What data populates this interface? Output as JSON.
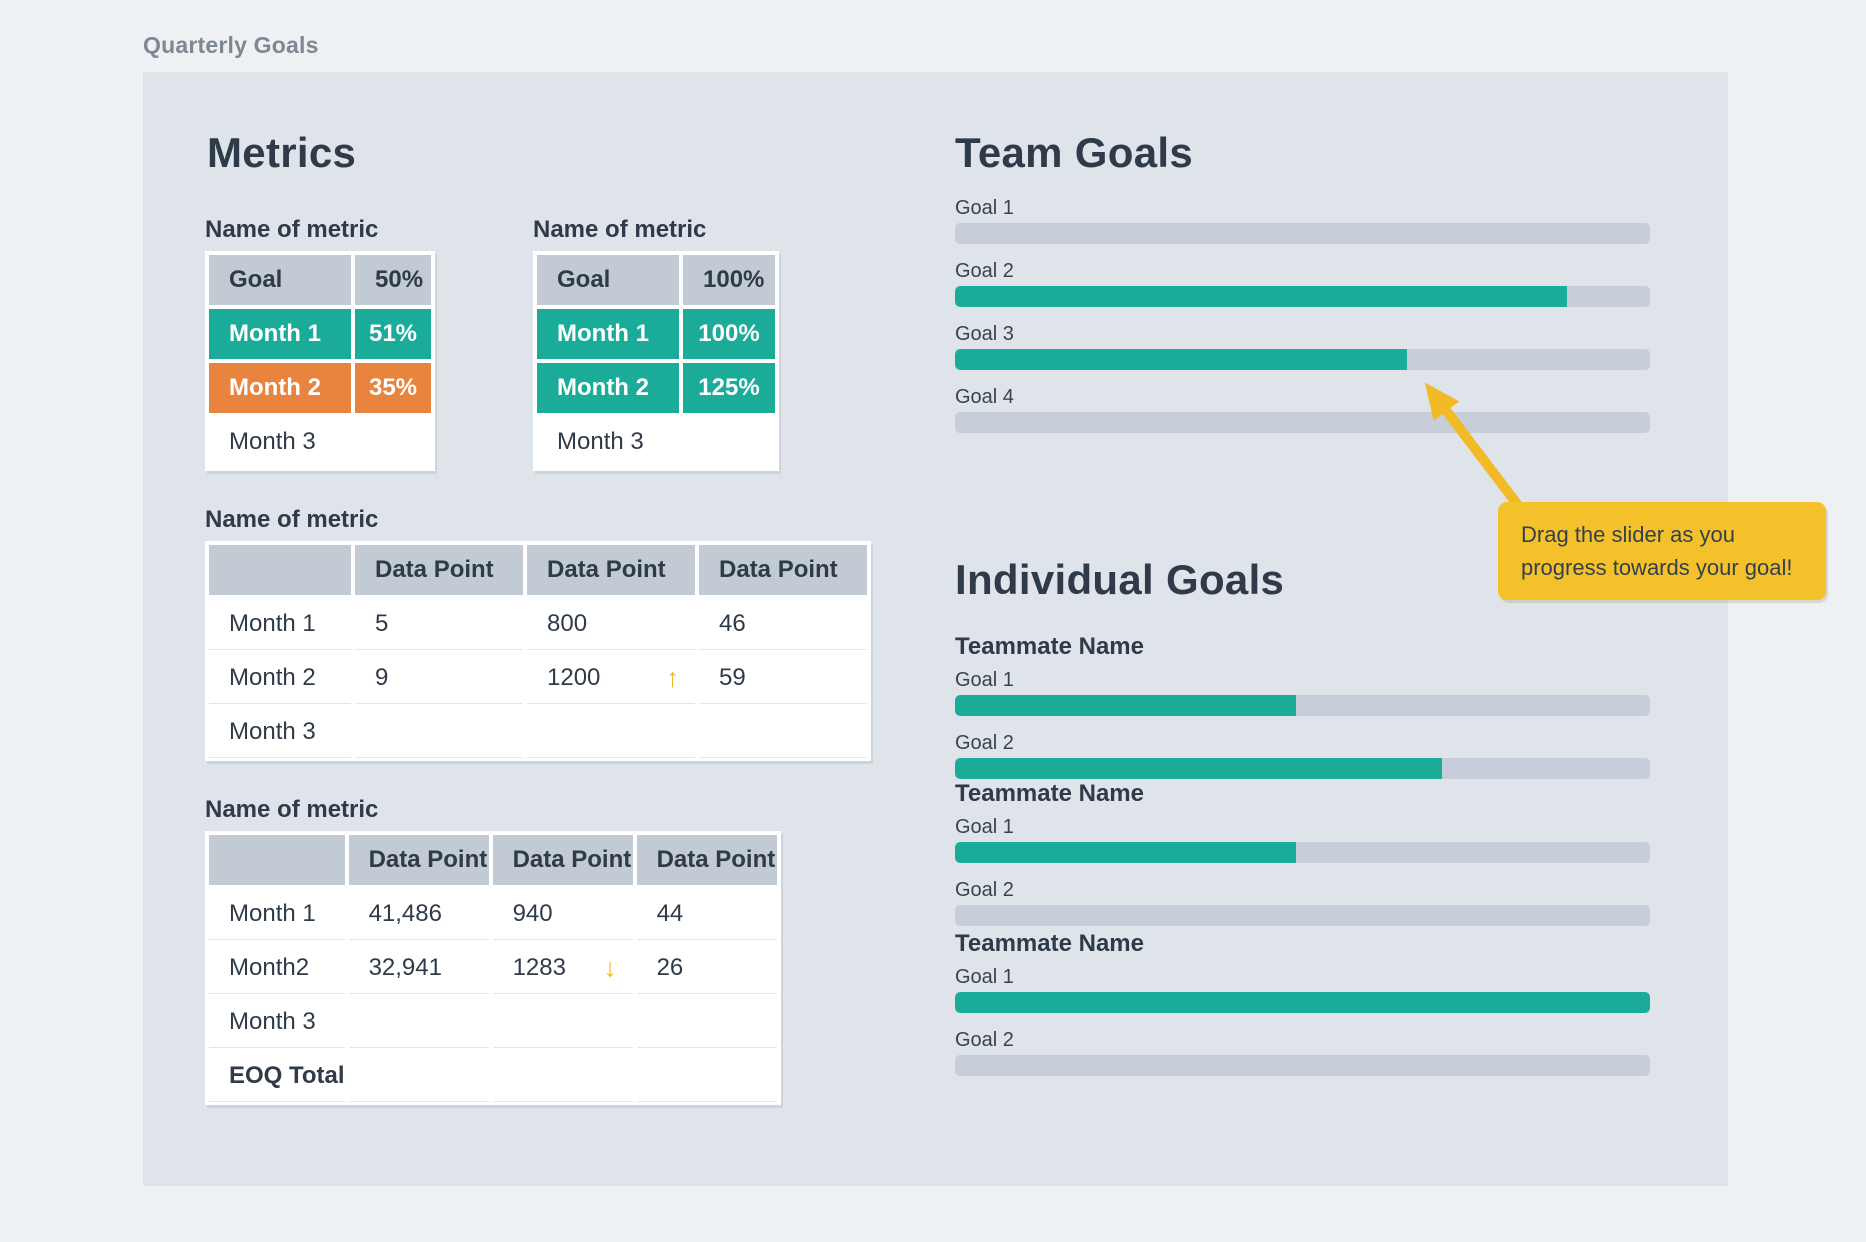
{
  "page": {
    "title": "Quarterly Goals"
  },
  "colors": {
    "page_bg": "#eef1f4",
    "card_bg": "#dfe4eb",
    "teal": "#1aac98",
    "orange": "#e8843d",
    "header_gray": "#c2cad3",
    "track_gray": "#c7ced9",
    "dark_text": "#2f3b49",
    "tooltip_yellow": "#f5c12b",
    "trend_amber": "#efb32e"
  },
  "metrics": {
    "heading": "Metrics",
    "goal_tables": [
      {
        "label": "Name of metric",
        "header": {
          "name": "Goal",
          "value": "50%"
        },
        "rows": [
          {
            "name": "Month 1",
            "value": "51%",
            "status": "above-goal"
          },
          {
            "name": "Month 2",
            "value": "35%",
            "status": "below-goal"
          },
          {
            "name": "Month 3",
            "value": "",
            "status": "empty"
          }
        ]
      },
      {
        "label": "Name of metric",
        "header": {
          "name": "Goal",
          "value": "100%"
        },
        "rows": [
          {
            "name": "Month 1",
            "value": "100%",
            "status": "above-goal"
          },
          {
            "name": "Month 2",
            "value": "125%",
            "status": "above-goal"
          },
          {
            "name": "Month 3",
            "value": "",
            "status": "empty"
          }
        ]
      }
    ],
    "data_tables": [
      {
        "label": "Name of metric",
        "columns": [
          "",
          "Data Point",
          "Data Point",
          "Data Point"
        ],
        "rows": [
          {
            "name": "Month 1",
            "values": [
              "5",
              "800",
              "46"
            ],
            "trend": null
          },
          {
            "name": "Month 2",
            "values": [
              "9",
              "1200",
              "59"
            ],
            "trend": "up"
          },
          {
            "name": "Month 3",
            "values": [
              "",
              "",
              ""
            ],
            "trend": null
          }
        ]
      },
      {
        "label": "Name of metric",
        "columns": [
          "",
          "Data Point",
          "Data Point",
          "Data Point"
        ],
        "rows": [
          {
            "name": "Month 1",
            "values": [
              "41,486",
              "940",
              "44"
            ],
            "trend": null
          },
          {
            "name": "Month2",
            "values": [
              "32,941",
              "1283",
              "26"
            ],
            "trend": "down"
          },
          {
            "name": "Month 3",
            "values": [
              "",
              "",
              ""
            ],
            "trend": null
          },
          {
            "name": "EOQ Total",
            "values": [
              "",
              "",
              ""
            ],
            "trend": null
          }
        ]
      }
    ]
  },
  "team_goals": {
    "heading": "Team Goals",
    "goals": [
      {
        "label": "Goal 1",
        "progress": 0
      },
      {
        "label": "Goal 2",
        "progress": 88
      },
      {
        "label": "Goal 3",
        "progress": 65
      },
      {
        "label": "Goal 4",
        "progress": 0
      }
    ]
  },
  "individual_goals": {
    "heading": "Individual Goals",
    "teammates": [
      {
        "name": "Teammate Name",
        "goals": [
          {
            "label": "Goal 1",
            "progress": 49
          },
          {
            "label": "Goal 2",
            "progress": 70
          }
        ]
      },
      {
        "name": "Teammate Name",
        "goals": [
          {
            "label": "Goal 1",
            "progress": 49
          },
          {
            "label": "Goal 2",
            "progress": 0
          }
        ]
      },
      {
        "name": "Teammate Name",
        "goals": [
          {
            "label": "Goal 1",
            "progress": 100
          },
          {
            "label": "Goal 2",
            "progress": 0
          }
        ]
      }
    ]
  },
  "tooltip": {
    "text": "Drag the slider as you progress towards your goal!"
  },
  "trend_icons": {
    "up": "↑",
    "down": "↓"
  }
}
